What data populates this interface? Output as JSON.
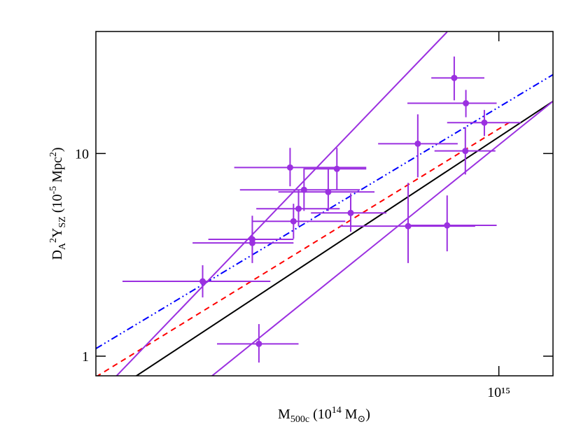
{
  "chart_data": {
    "type": "scatter",
    "xlabel": [
      "M",
      "500c",
      " (10",
      "14",
      " M",
      "⊙",
      ")"
    ],
    "ylabel": [
      "D",
      "A",
      "2",
      "Y",
      "SZ",
      " (10",
      "-5",
      " Mpc",
      "2",
      ")"
    ],
    "log_x": true,
    "log_y": true,
    "xlim": [
      190000000000000.0,
      1250000000000000.0
    ],
    "ylim": [
      0.8,
      40
    ],
    "xticks": [
      {
        "value": 1000000000000000.0,
        "label": "10¹⁵"
      }
    ],
    "yticks": [
      1,
      10
    ],
    "series": [
      {
        "color": "#9b30e0",
        "x": [
          295000000000000.0,
          372000000000000.0,
          362000000000000.0,
          362000000000000.0,
          423000000000000.0,
          429000000000000.0,
          438000000000000.0,
          448000000000000.0,
          495000000000000.0,
          513000000000000.0,
          543000000000000.0,
          688000000000000.0,
          716000000000000.0,
          808000000000000.0,
          832000000000000.0,
          871000000000000.0,
          873000000000000.0,
          942000000000000.0
        ],
        "x_low": [
          212000000000000.0,
          313000000000000.0,
          302000000000000.0,
          283000000000000.0,
          336000000000000.0,
          361000000000000.0,
          368000000000000.0,
          344000000000000.0,
          403000000000000.0,
          447000000000000.0,
          461000000000000.0,
          519000000000000.0,
          608000000000000.0,
          680000000000000.0,
          757000000000000.0,
          767000000000000.0,
          686000000000000.0,
          808000000000000.0
        ],
        "x_high": [
          390000000000000.0,
          438000000000000.0,
          429000000000000.0,
          429000000000000.0,
          579000000000000.0,
          531000000000000.0,
          519000000000000.0,
          564000000000000.0,
          599000000000000.0,
          579000000000000.0,
          629000000000000.0,
          907000000000000.0,
          844000000000000.0,
          991000000000000.0,
          942000000000000.0,
          986000000000000.0,
          991000000000000.0,
          1094000000000000.0
        ],
        "values": [
          2.34,
          1.15,
          3.77,
          3.62,
          8.53,
          4.63,
          5.34,
          6.62,
          6.46,
          8.4,
          5.09,
          4.38,
          11.18,
          4.42,
          23.6,
          10.3,
          17.7,
          14.2
        ],
        "y_low": [
          1.95,
          0.93,
          2.88,
          3.18,
          6.89,
          3.8,
          4.38,
          5.21,
          5.21,
          6.62,
          4.11,
          2.88,
          7.63,
          3.29,
          18.3,
          7.88,
          15.1,
          12.2
        ],
        "y_high": [
          2.81,
          1.44,
          4.93,
          4.11,
          10.66,
          5.65,
          6.62,
          8.4,
          8.4,
          10.66,
          6.36,
          7.16,
          15.6,
          6.21,
          30.1,
          13.5,
          20.6,
          16.4
        ]
      }
    ],
    "lines": [
      {
        "color": "#000000",
        "dash": "solid",
        "x": [
          223000000000000.0,
          1250000000000000.0
        ],
        "values": [
          0.79,
          18.1
        ]
      },
      {
        "color": "#ff0000",
        "dash": "dashed",
        "x": [
          190000000000000.0,
          1060000000000000.0
        ],
        "values": [
          0.79,
          14.6
        ]
      },
      {
        "color": "#0000ff",
        "dash": "dash-dot-dot",
        "x": [
          190000000000000.0,
          1250000000000000.0
        ],
        "values": [
          1.09,
          24.5
        ]
      },
      {
        "color": "#9b30e0",
        "dash": "solid",
        "x": [
          206000000000000.0,
          808000000000000.0
        ],
        "values": [
          0.79,
          39.8
        ]
      },
      {
        "color": "#9b30e0",
        "dash": "solid",
        "x": [
          305000000000000.0,
          1250000000000000.0
        ],
        "values": [
          0.79,
          18.1
        ]
      }
    ]
  }
}
